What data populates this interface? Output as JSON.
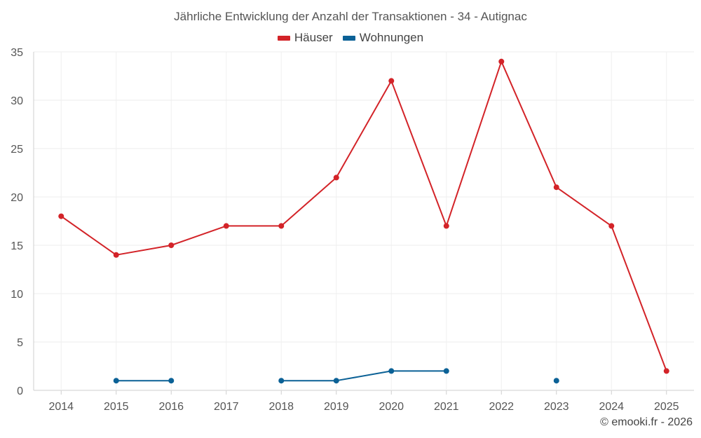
{
  "chart_data": {
    "type": "line",
    "title": "Jährliche Entwicklung der Anzahl der Transaktionen - 34 - Autignac",
    "categories": [
      "2014",
      "2015",
      "2016",
      "2017",
      "2018",
      "2019",
      "2020",
      "2021",
      "2022",
      "2023",
      "2024",
      "2025"
    ],
    "series": [
      {
        "name": "Häuser",
        "color": "#d32328",
        "values": [
          18,
          14,
          15,
          17,
          17,
          22,
          32,
          17,
          34,
          21,
          17,
          2
        ]
      },
      {
        "name": "Wohnungen",
        "color": "#0b6196",
        "values": [
          null,
          1,
          1,
          null,
          1,
          1,
          2,
          2,
          null,
          1,
          null,
          null
        ]
      }
    ],
    "ylim": [
      0,
      35
    ],
    "yticks": [
      0,
      5,
      10,
      15,
      20,
      25,
      30,
      35
    ],
    "grid": true,
    "legend_position": "top-center",
    "xlabel": "",
    "ylabel": ""
  },
  "credit": "© emooki.fr - 2026"
}
